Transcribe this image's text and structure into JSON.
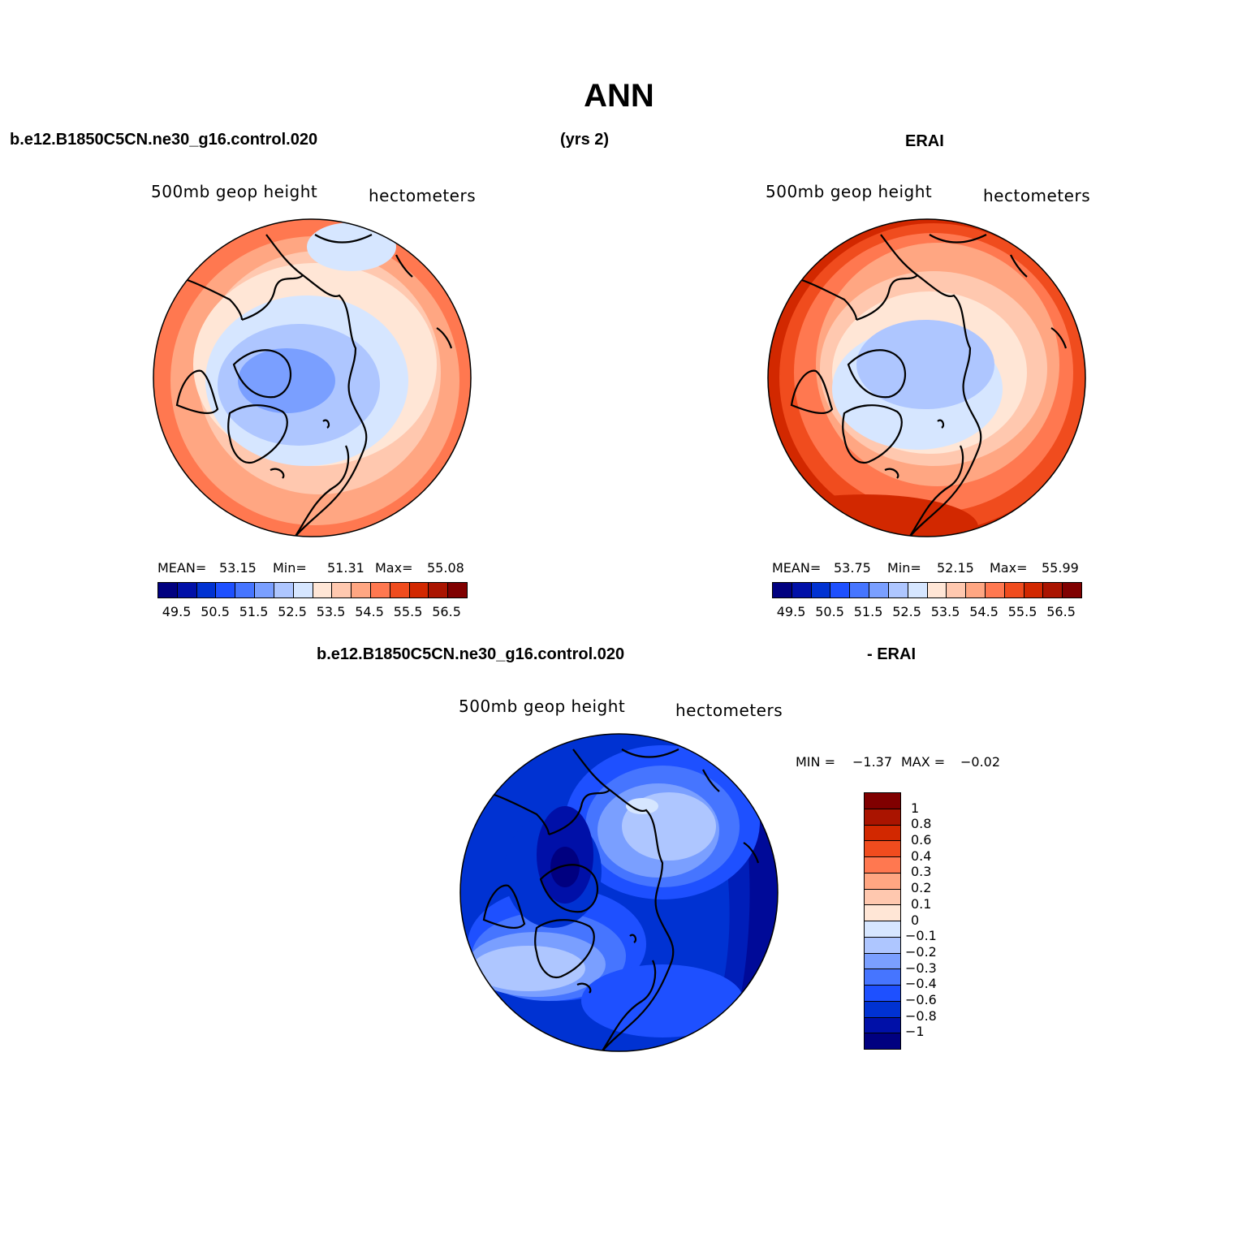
{
  "title": "ANN",
  "top_left_header": "b.e12.B1850C5CN.ne30_g16.control.020",
  "top_center_header": "(yrs 2)",
  "top_right_header": "ERAI",
  "bottom_header_left": "b.e12.B1850C5CN.ne30_g16.control.020",
  "bottom_header_right": "- ERAI",
  "panels": [
    {
      "id": "model",
      "var_label": "500mb  geop  height",
      "units_label": "hectometers",
      "stats": {
        "mean_label": "MEAN=",
        "mean": "53.15",
        "min_label": "Min=",
        "min": "51.31",
        "max_label": "Max=",
        "max": "55.08"
      }
    },
    {
      "id": "erai",
      "var_label": "500mb  geop  height",
      "units_label": "hectometers",
      "stats": {
        "mean_label": "MEAN=",
        "mean": "53.75",
        "min_label": "Min=",
        "min": "52.15",
        "max_label": "Max=",
        "max": "55.99"
      }
    },
    {
      "id": "diff",
      "var_label": "500mb  geop  height",
      "units_label": "hectometers",
      "stats": {
        "min_label": "MIN =",
        "min": "−1.37",
        "max_label": "MAX =",
        "max": "−0.02"
      }
    }
  ],
  "colorbar_horizontal": {
    "tick_labels": [
      "49.5",
      "50.5",
      "51.5",
      "52.5",
      "53.5",
      "54.5",
      "55.5",
      "56.5"
    ],
    "colors": [
      "#000080",
      "#0010a8",
      "#0032d2",
      "#1e50ff",
      "#4675ff",
      "#7a9fff",
      "#aec6ff",
      "#d6e6ff",
      "#ffe6d6",
      "#ffc8af",
      "#ffa682",
      "#ff7850",
      "#f04c1e",
      "#d22800",
      "#aa1400",
      "#800000"
    ]
  },
  "colorbar_vertical": {
    "tick_labels": [
      "1",
      "0.8",
      "0.6",
      "0.4",
      "0.3",
      "0.2",
      "0.1",
      "0",
      "−0.1",
      "−0.2",
      "−0.3",
      "−0.4",
      "−0.6",
      "−0.8",
      "−1"
    ],
    "colors": [
      "#800000",
      "#aa1400",
      "#d22800",
      "#f04c1e",
      "#ff7850",
      "#ffa682",
      "#ffc8af",
      "#ffe6d6",
      "#d6e6ff",
      "#aec6ff",
      "#7a9fff",
      "#4675ff",
      "#1e50ff",
      "#0032d2",
      "#0010a8",
      "#000080"
    ]
  }
}
